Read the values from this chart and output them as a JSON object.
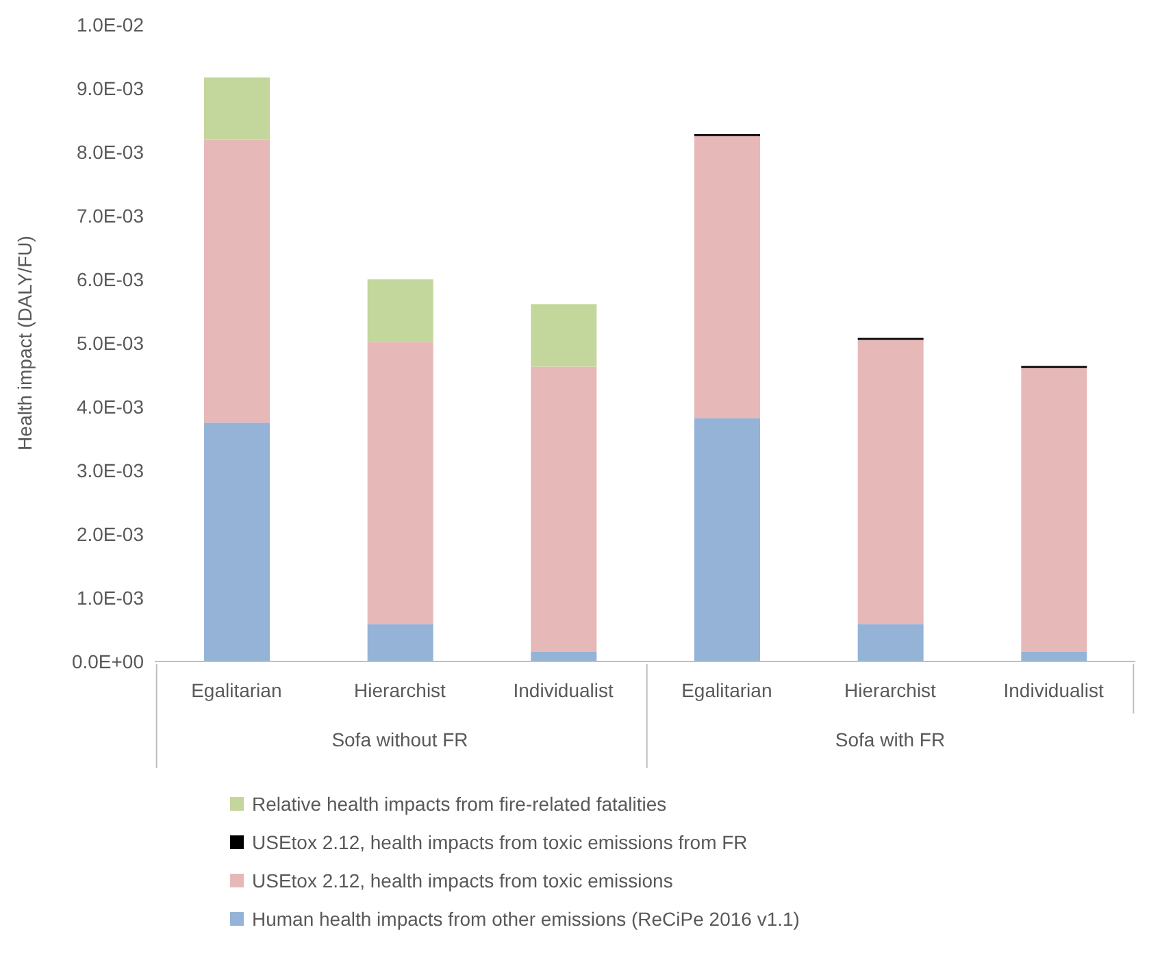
{
  "chart_data": {
    "type": "bar",
    "stacked": true,
    "ylabel": "Health impact (DALY/FU)",
    "categories": [
      "Egalitarian",
      "Hierarchist",
      "Individualist",
      "Egalitarian",
      "Hierarchist",
      "Individualist"
    ],
    "annotations": [
      "Sofa without FR",
      "Sofa with FR"
    ],
    "series": [
      {
        "name": "Human health impacts from other emissions (ReCiPe 2016 v1.1)",
        "color": "#95b3d7",
        "values": [
          0.00375,
          0.00059,
          0.00015,
          0.00382,
          0.00059,
          0.00015
        ]
      },
      {
        "name": "USEtox 2.12, health impacts from toxic emissions",
        "color": "#e6b9b8",
        "values": [
          0.00445,
          0.00443,
          0.00448,
          0.00443,
          0.00446,
          0.00446
        ]
      },
      {
        "name": "USEtox 2.12, health impacts from toxic emissions from FR",
        "color": "#000000",
        "values": [
          0,
          0,
          0,
          3e-05,
          3e-05,
          3e-05
        ]
      },
      {
        "name": "Relative health impacts from fire-related fatalities",
        "color": "#c3d69b",
        "values": [
          0.00097,
          0.00098,
          0.00098,
          0,
          0,
          0
        ]
      }
    ],
    "ylim": [
      0,
      0.01
    ],
    "yticks": [
      {
        "value": 0,
        "label": "0.0E+00"
      },
      {
        "value": 0.001,
        "label": "1.0E-03"
      },
      {
        "value": 0.002,
        "label": "2.0E-03"
      },
      {
        "value": 0.003,
        "label": "3.0E-03"
      },
      {
        "value": 0.004,
        "label": "4.0E-03"
      },
      {
        "value": 0.005,
        "label": "5.0E-03"
      },
      {
        "value": 0.006,
        "label": "6.0E-03"
      },
      {
        "value": 0.007,
        "label": "7.0E-03"
      },
      {
        "value": 0.008,
        "label": "8.0E-03"
      },
      {
        "value": 0.009,
        "label": "9.0E-03"
      },
      {
        "value": 0.01,
        "label": "1.0E-02"
      }
    ],
    "grid": false,
    "legend": "bottom"
  }
}
